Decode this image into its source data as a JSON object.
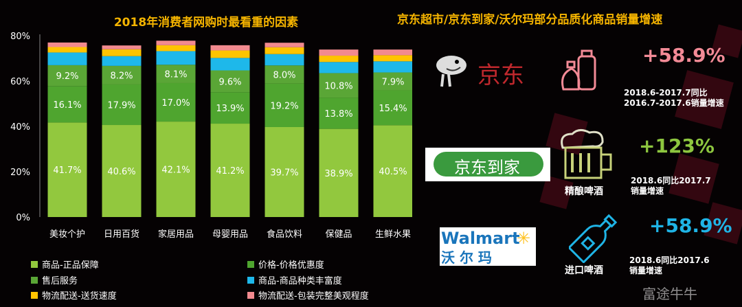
{
  "chart_data": {
    "type": "bar",
    "stacked": true,
    "title": "2018年消费者网购时最看重的因素",
    "categories": [
      "美妆个护",
      "日用百货",
      "家居用品",
      "母婴用品",
      "食品饮料",
      "保健品",
      "生鲜水果"
    ],
    "ylim": [
      0,
      80
    ],
    "yticks": [
      "0%",
      "20%",
      "40%",
      "60%",
      "80%"
    ],
    "legend_position": "bottom",
    "series": [
      {
        "name": "商品-正品保障",
        "color": "#92c83e",
        "values": [
          41.7,
          40.6,
          42.1,
          41.2,
          39.7,
          38.9,
          40.5
        ],
        "labels": [
          "41.7%",
          "40.6%",
          "42.1%",
          "41.2%",
          "39.7%",
          "38.9%",
          "40.5%"
        ]
      },
      {
        "name": "价格-价格优惠度",
        "color": "#4fa52f",
        "values": [
          16.1,
          17.9,
          17.0,
          13.9,
          19.2,
          13.8,
          15.4
        ],
        "labels": [
          "16.1%",
          "17.9%",
          "17.0%",
          "13.9%",
          "19.2%",
          "13.8%",
          "15.4%"
        ]
      },
      {
        "name": "售后服务",
        "color": "#5aa636",
        "values": [
          9.2,
          8.2,
          8.1,
          9.6,
          8.0,
          10.8,
          7.9
        ],
        "labels": [
          "9.2%",
          "8.2%",
          "8.1%",
          "9.6%",
          "8.0%",
          "10.8%",
          "7.9%"
        ]
      },
      {
        "name": "商品-商品种类丰富度",
        "color": "#1eb8ea",
        "values": [
          5.6,
          4.3,
          6.0,
          5.5,
          5.0,
          4.9,
          4.9
        ]
      },
      {
        "name": "物流配送-送货速度",
        "color": "#ffc400",
        "values": [
          2.4,
          3.0,
          2.6,
          3.3,
          3.0,
          2.8,
          2.7
        ]
      },
      {
        "name": "物流配送-包装完整美观程度",
        "color": "#f28a8f",
        "values": [
          2.0,
          1.7,
          2.0,
          2.3,
          2.0,
          2.7,
          2.5
        ]
      }
    ]
  },
  "right": {
    "title": "京东超市/京东到家/沃尔玛部分品质化商品销量增速",
    "rows": [
      {
        "brand": "京东",
        "category": "",
        "growth": "+58.9%",
        "color": "#f28a96",
        "note1": "2018.6-2017.7同比",
        "note2": "2016.7-2017.6销量增速"
      },
      {
        "brand": "京东到家",
        "category": "精酿啤酒",
        "growth": "+123%",
        "color": "#8dc63f",
        "note1": "2018.6同比2017.7",
        "note2": "销量增速"
      },
      {
        "brand": "Walmart",
        "brand_cn": "沃 尔 玛",
        "category": "进口啤酒",
        "growth": "+58.9%",
        "color": "#1fb4e6",
        "note1": "2018.6同比2017.6",
        "note2": "销量增速"
      }
    ]
  },
  "watermark": "富途牛牛"
}
